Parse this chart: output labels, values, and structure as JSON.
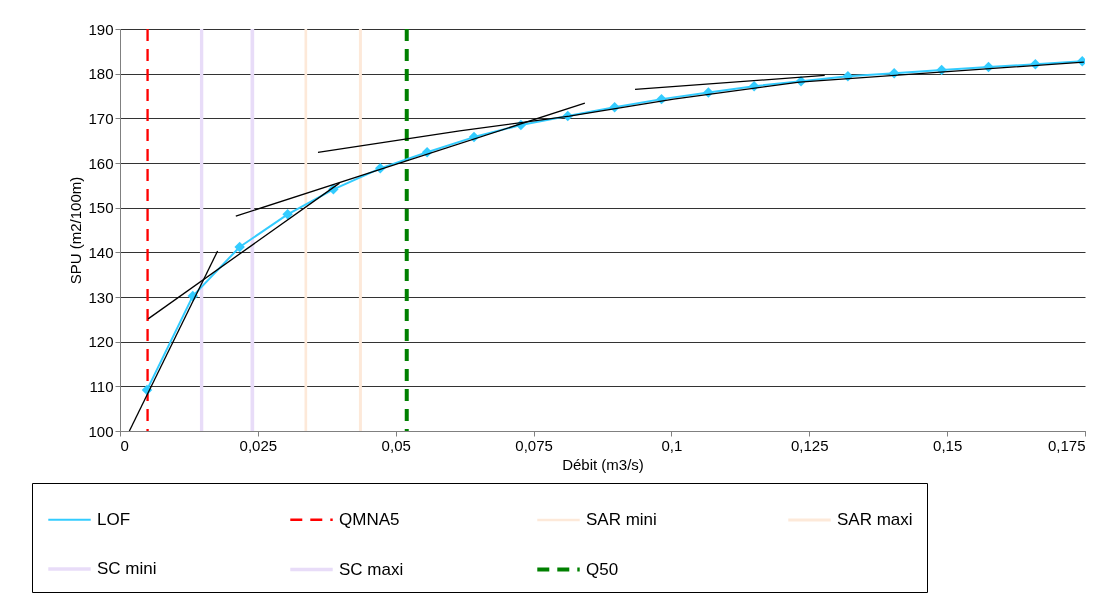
{
  "chart_data": {
    "type": "line",
    "xlabel": "Débit (m3/s)",
    "ylabel": "SPU (m2/100m)",
    "xlim": [
      0,
      0.175
    ],
    "xticks": [
      0,
      {
        "value": 0.025,
        "label": "0,025"
      },
      {
        "value": 0.05,
        "label": "0,05"
      },
      {
        "value": 0.075,
        "label": "0,075"
      },
      {
        "value": 0.1,
        "label": "0,1"
      },
      {
        "value": 0.125,
        "label": "0,125"
      },
      {
        "value": 0.15,
        "label": "0,15"
      },
      {
        "value": 0.175,
        "label": "0,175"
      }
    ],
    "ylim": [
      100,
      190
    ],
    "yticks": [
      100,
      110,
      120,
      130,
      140,
      150,
      160,
      170,
      180,
      190
    ],
    "grid": "y",
    "legend": "bottom",
    "marker": "diamond",
    "line_style": "solid",
    "series": [
      {
        "name": "LOF",
        "color": "#33ccff",
        "x": [
          0.0049,
          0.0132,
          0.0217,
          0.0304,
          0.0387,
          0.0472,
          0.0557,
          0.0642,
          0.0727,
          0.0812,
          0.0897,
          0.0982,
          0.1067,
          0.115,
          0.1235,
          0.132,
          0.1404,
          0.149,
          0.1575,
          0.166,
          0.1745
        ],
        "values": [
          109.2,
          130.2,
          141.2,
          148.5,
          154.1,
          158.8,
          162.4,
          165.8,
          168.5,
          170.5,
          172.5,
          174.3,
          175.8,
          177.2,
          178.3,
          179.4,
          180.1,
          180.8,
          181.5,
          182.1,
          182.8
        ]
      },
      {
        "type": "line",
        "color": "#000000",
        "marker": "none",
        "x": [
          0.0017,
          0.0177
        ],
        "values": [
          100,
          140.3
        ]
      },
      {
        "type": "line",
        "color": "#000000",
        "marker": "none",
        "x": [
          0.0051,
          0.0398
        ],
        "values": [
          125.1,
          155.5
        ]
      },
      {
        "type": "line",
        "color": "#000000",
        "marker": "none",
        "x": [
          0.021,
          0.0843
        ],
        "values": [
          148.1,
          173.4
        ]
      },
      {
        "type": "line",
        "color": "#000000",
        "marker": "none",
        "x": [
          0.0359,
          0.0616,
          0.0815,
          0.1004,
          0.1232,
          0.1748
        ],
        "values": [
          162.4,
          167.2,
          170.5,
          174.3,
          178.1,
          182.6
        ]
      },
      {
        "type": "line",
        "color": "#000000",
        "marker": "none",
        "x": [
          0.0934,
          0.1278
        ],
        "values": [
          176.5,
          179.6
        ]
      }
    ],
    "ref_lines": [
      {
        "axis": "x",
        "value": 0.005,
        "label": "QMNA5",
        "color": "#ff0000",
        "line_style": "dashed"
      },
      {
        "axis": "x",
        "value": 0.0337,
        "label": "SAR mini",
        "color": "#fde9d9",
        "line_style": "solid"
      },
      {
        "axis": "x",
        "value": 0.0436,
        "label": "SAR maxi",
        "color": "#fde9d9",
        "line_style": "solid"
      },
      {
        "axis": "x",
        "value": 0.0148,
        "label": "SC mini",
        "color": "#e8dcf8",
        "line_style": "solid"
      },
      {
        "axis": "x",
        "value": 0.024,
        "label": "SC maxi",
        "color": "#e8dcf8",
        "line_style": "solid"
      },
      {
        "axis": "x",
        "value": 0.052,
        "label": "Q50",
        "color": "#008000",
        "line_style": "dashed"
      }
    ]
  }
}
